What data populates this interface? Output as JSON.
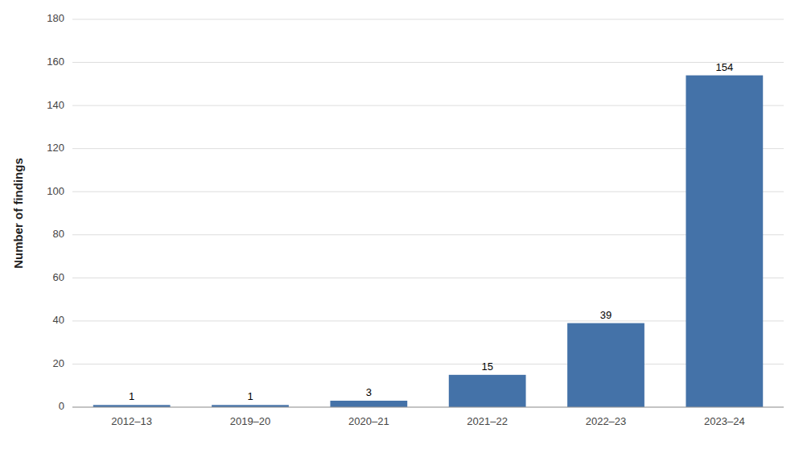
{
  "chart_data": {
    "type": "bar",
    "categories": [
      "2012–13",
      "2019–20",
      "2020–21",
      "2021–22",
      "2022–23",
      "2023–24"
    ],
    "values": [
      1,
      1,
      3,
      15,
      39,
      154
    ],
    "color": "#4472a8",
    "ylabel": "Number of findings",
    "ylim": [
      0,
      180
    ],
    "yticks": [
      0,
      20,
      40,
      60,
      80,
      100,
      120,
      140,
      160,
      180
    ],
    "grid": true,
    "data_labels": true
  }
}
